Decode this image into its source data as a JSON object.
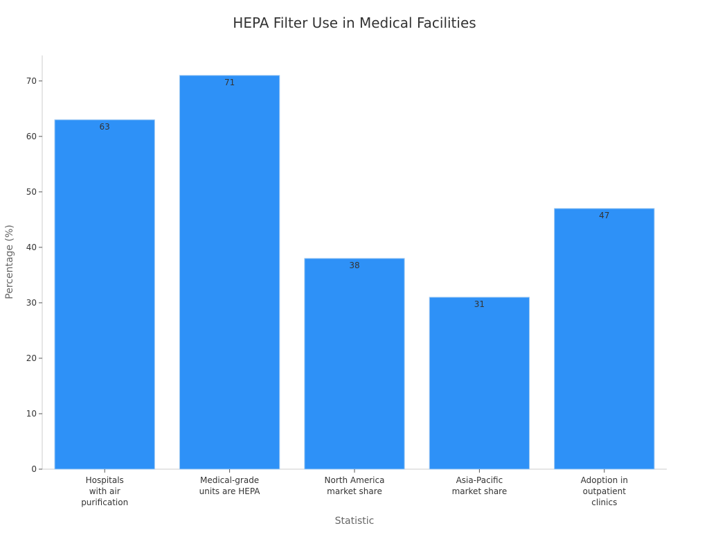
{
  "chart_data": {
    "type": "bar",
    "title": "HEPA Filter Use in Medical Facilities",
    "xlabel": "Statistic",
    "ylabel": "Percentage (%)",
    "categories": [
      [
        "Hospitals",
        "with air",
        "purification"
      ],
      [
        "Medical-grade",
        "units are HEPA"
      ],
      [
        "North America",
        "market share"
      ],
      [
        "Asia-Pacific",
        "market share"
      ],
      [
        "Adoption in",
        "outpatient",
        "clinics"
      ]
    ],
    "values": [
      63,
      71,
      38,
      31,
      47
    ],
    "data_labels": [
      "63",
      "71",
      "38",
      "31",
      "47"
    ],
    "yticks": [
      0,
      10,
      20,
      30,
      40,
      50,
      60,
      70
    ],
    "ytick_labels": [
      "0",
      "10",
      "20",
      "30",
      "40",
      "50",
      "60",
      "70"
    ],
    "ylim": [
      0,
      74.6
    ],
    "grid": false,
    "legend": "none",
    "colors": {
      "bar": "#2e91f7",
      "bar_edge": "#9fc9f2",
      "axis": "#cccccc",
      "text": "#333333",
      "axis_label": "#666666"
    }
  }
}
